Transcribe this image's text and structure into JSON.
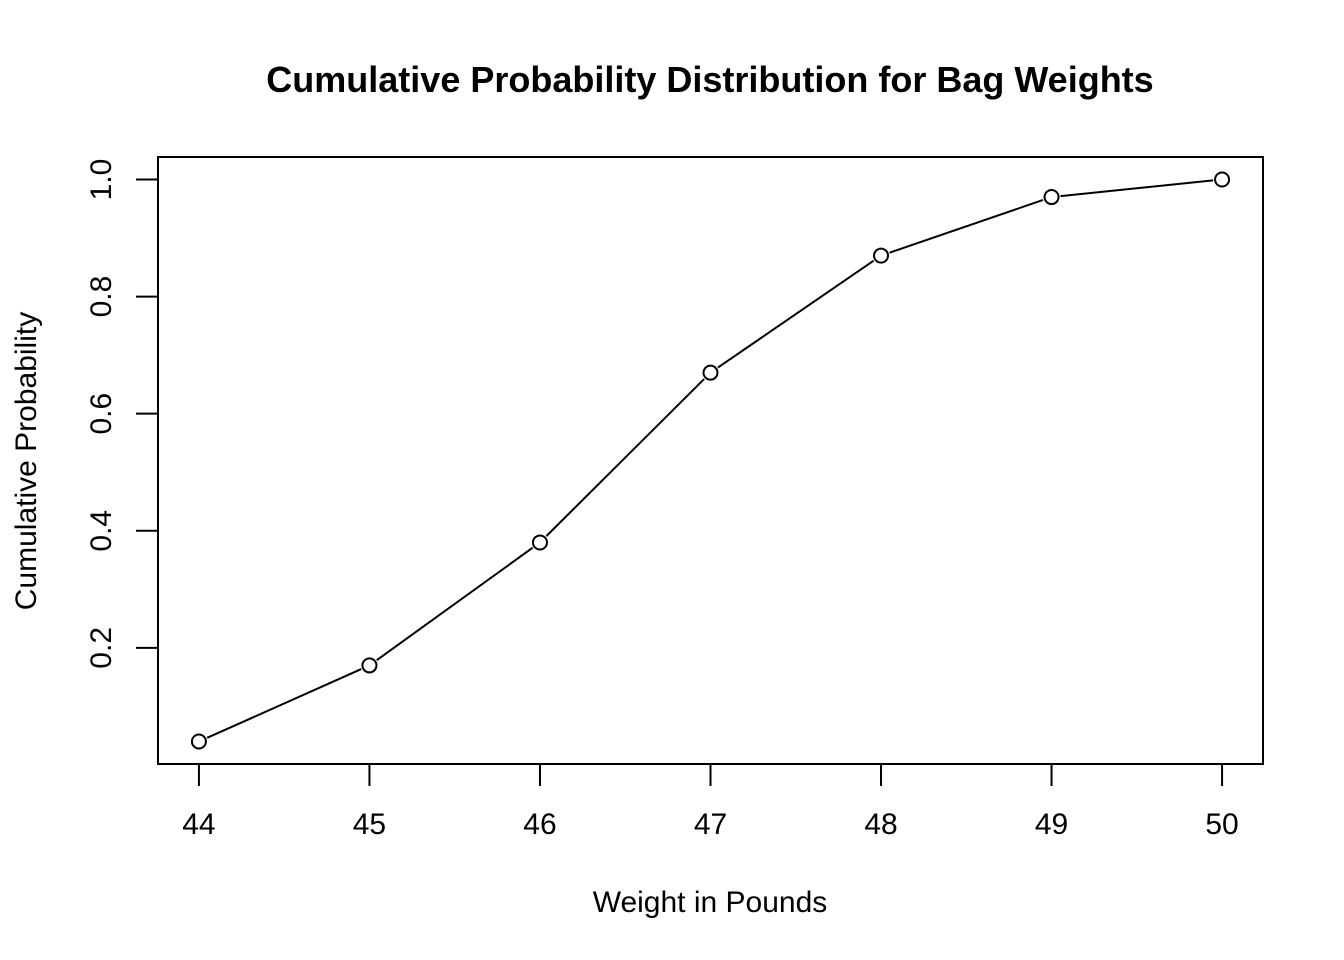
{
  "chart_data": {
    "type": "line",
    "title": "Cumulative Probability Distribution for Bag Weights",
    "xlabel": "Weight in Pounds",
    "ylabel": "Cumulative Probability",
    "x": [
      44,
      45,
      46,
      47,
      48,
      49,
      50
    ],
    "y": [
      0.04,
      0.17,
      0.38,
      0.67,
      0.87,
      0.97,
      1.0
    ],
    "xlim": [
      43.76,
      50.24
    ],
    "ylim": [
      0.0016,
      1.0384
    ],
    "x_ticks": [
      44,
      45,
      46,
      47,
      48,
      49,
      50
    ],
    "x_tick_labels": [
      "44",
      "45",
      "46",
      "47",
      "48",
      "49",
      "50"
    ],
    "y_ticks": [
      0.2,
      0.4,
      0.6,
      0.8,
      1.0
    ],
    "y_tick_labels": [
      "0.2",
      "0.4",
      "0.6",
      "0.8",
      "1.0"
    ],
    "marker": "open-circle",
    "line_color": "#000000",
    "grid": false,
    "legend": false
  }
}
